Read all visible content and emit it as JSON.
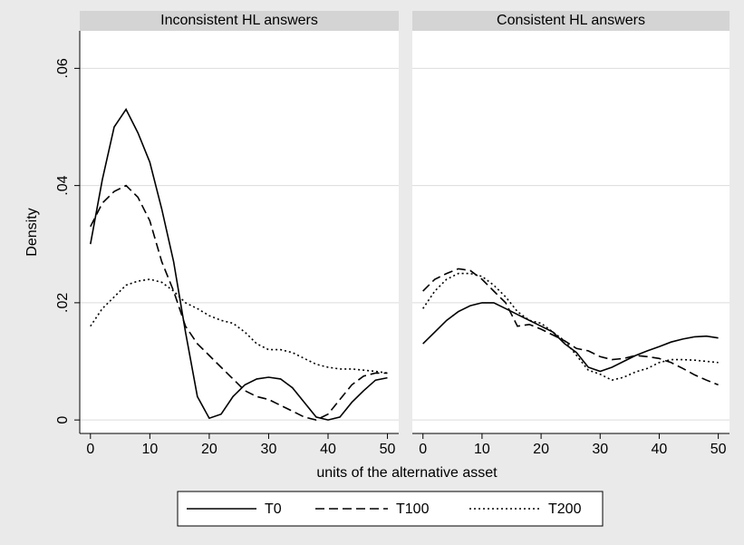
{
  "chart_data": [
    {
      "type": "line",
      "title": "Inconsistent HL answers",
      "ylabel": "Density",
      "xlabel": "units of the alternative asset",
      "x": [
        0,
        2,
        4,
        6,
        8,
        10,
        12,
        14,
        16,
        18,
        20,
        22,
        24,
        26,
        28,
        30,
        32,
        34,
        36,
        38,
        40,
        42,
        44,
        46,
        48,
        50
      ],
      "series": [
        {
          "name": "T0",
          "color": "#000000",
          "dash": "solid",
          "values": [
            0.03,
            0.041,
            0.05,
            0.053,
            0.049,
            0.044,
            0.036,
            0.027,
            0.015,
            0.004,
            0.0003,
            0.001,
            0.004,
            0.006,
            0.007,
            0.0073,
            0.007,
            0.0055,
            0.003,
            0.0005,
            0,
            0.0005,
            0.003,
            0.005,
            0.0068,
            0.0072
          ]
        },
        {
          "name": "T100",
          "color": "#000000",
          "dash": "dashed",
          "values": [
            0.033,
            0.037,
            0.039,
            0.04,
            0.038,
            0.034,
            0.027,
            0.022,
            0.016,
            0.013,
            0.011,
            0.009,
            0.007,
            0.005,
            0.004,
            0.0035,
            0.0025,
            0.0015,
            0.0005,
            0,
            0.001,
            0.0035,
            0.006,
            0.0075,
            0.008,
            0.008
          ]
        },
        {
          "name": "T200",
          "color": "#000000",
          "dash": "dotted",
          "values": [
            0.016,
            0.019,
            0.021,
            0.023,
            0.0237,
            0.024,
            0.0235,
            0.022,
            0.02,
            0.019,
            0.0178,
            0.017,
            0.0165,
            0.015,
            0.013,
            0.012,
            0.012,
            0.0115,
            0.0105,
            0.0095,
            0.009,
            0.0087,
            0.0087,
            0.0085,
            0.0083,
            0.008
          ]
        }
      ],
      "xlim": [
        -1.8,
        51.9
      ],
      "xticks": [
        0,
        10,
        20,
        30,
        40,
        50
      ],
      "ylim": [
        -0.0023,
        0.0664
      ],
      "yticks": [
        0,
        {
          "value": 0.02,
          "label": ".02"
        },
        {
          "value": 0.04,
          "label": ".04"
        },
        {
          "value": 0.06,
          "label": ".06"
        }
      ],
      "grid": true
    },
    {
      "type": "line",
      "title": "Consistent HL answers",
      "x": [
        0,
        2,
        4,
        6,
        8,
        10,
        12,
        14,
        16,
        18,
        20,
        22,
        24,
        26,
        28,
        30,
        32,
        34,
        36,
        38,
        40,
        42,
        44,
        46,
        48,
        50
      ],
      "series": [
        {
          "name": "T0",
          "color": "#000000",
          "dash": "solid",
          "values": [
            0.013,
            0.015,
            0.017,
            0.0185,
            0.0195,
            0.02,
            0.02,
            0.019,
            0.018,
            0.017,
            0.016,
            0.015,
            0.013,
            0.0115,
            0.009,
            0.0083,
            0.009,
            0.01,
            0.011,
            0.0118,
            0.0125,
            0.0133,
            0.0138,
            0.0142,
            0.0143,
            0.014
          ]
        },
        {
          "name": "T100",
          "color": "#000000",
          "dash": "dashed",
          "values": [
            0.022,
            0.024,
            0.025,
            0.0258,
            0.0255,
            0.024,
            0.022,
            0.02,
            0.016,
            0.0163,
            0.0155,
            0.0145,
            0.0135,
            0.0122,
            0.0118,
            0.0108,
            0.0103,
            0.0105,
            0.011,
            0.0108,
            0.0105,
            0.0098,
            0.0088,
            0.0077,
            0.0068,
            0.006
          ]
        },
        {
          "name": "T200",
          "color": "#000000",
          "dash": "dotted",
          "values": [
            0.019,
            0.022,
            0.024,
            0.025,
            0.025,
            0.0245,
            0.023,
            0.021,
            0.0185,
            0.017,
            0.0165,
            0.015,
            0.0135,
            0.011,
            0.0085,
            0.0078,
            0.0068,
            0.0073,
            0.0082,
            0.0088,
            0.0098,
            0.0103,
            0.0103,
            0.0102,
            0.01,
            0.0098
          ]
        }
      ],
      "xlim": [
        -1.8,
        51.9
      ],
      "xticks": [
        0,
        10,
        20,
        30,
        40,
        50
      ],
      "ylim": [
        -0.0023,
        0.0664
      ],
      "yticks": [
        0,
        0.02,
        0.04,
        0.06
      ],
      "grid": true
    }
  ]
}
